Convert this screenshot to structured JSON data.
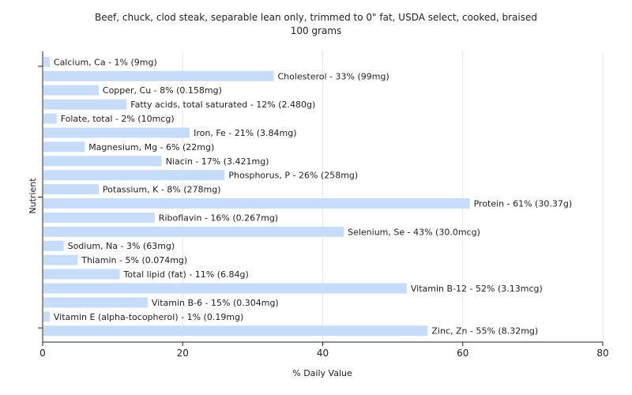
{
  "chart_data": {
    "type": "bar",
    "orientation": "horizontal",
    "title": "Beef, chuck, clod steak, separable lean only, trimmed to 0\" fat, USDA select, cooked, braised",
    "subtitle": "100 grams",
    "xlabel": "% Daily Value",
    "ylabel": "Nutrient",
    "xlim": [
      0,
      80
    ],
    "xticks": [
      0,
      20,
      40,
      60,
      80
    ],
    "grid": true,
    "bar_color": "#c6dcf8",
    "categories": [
      "Calcium, Ca",
      "Cholesterol",
      "Copper, Cu",
      "Fatty acids, total saturated",
      "Folate, total",
      "Iron, Fe",
      "Magnesium, Mg",
      "Niacin",
      "Phosphorus, P",
      "Potassium, K",
      "Protein",
      "Riboflavin",
      "Selenium, Se",
      "Sodium, Na",
      "Thiamin",
      "Total lipid (fat)",
      "Vitamin B-12",
      "Vitamin B-6",
      "Vitamin E (alpha-tocopherol)",
      "Zinc, Zn"
    ],
    "values": [
      1,
      33,
      8,
      12,
      2,
      21,
      6,
      17,
      26,
      8,
      61,
      16,
      43,
      3,
      5,
      11,
      52,
      15,
      1,
      55
    ],
    "labels": [
      "Calcium, Ca - 1% (9mg)",
      "Cholesterol - 33% (99mg)",
      "Copper, Cu - 8% (0.158mg)",
      "Fatty acids, total saturated - 12% (2.480g)",
      "Folate, total - 2% (10mcg)",
      "Iron, Fe - 21% (3.84mg)",
      "Magnesium, Mg - 6% (22mg)",
      "Niacin - 17% (3.421mg)",
      "Phosphorus, P - 26% (258mg)",
      "Potassium, K - 8% (278mg)",
      "Protein - 61% (30.37g)",
      "Riboflavin - 16% (0.267mg)",
      "Selenium, Se - 43% (30.0mcg)",
      "Sodium, Na - 3% (63mg)",
      "Thiamin - 5% (0.074mg)",
      "Total lipid (fat) - 11% (6.84g)",
      "Vitamin B-12 - 52% (3.13mcg)",
      "Vitamin B-6 - 15% (0.304mg)",
      "Vitamin E (alpha-tocopherol) - 1% (0.19mg)",
      "Zinc, Zn - 55% (8.32mg)"
    ]
  }
}
